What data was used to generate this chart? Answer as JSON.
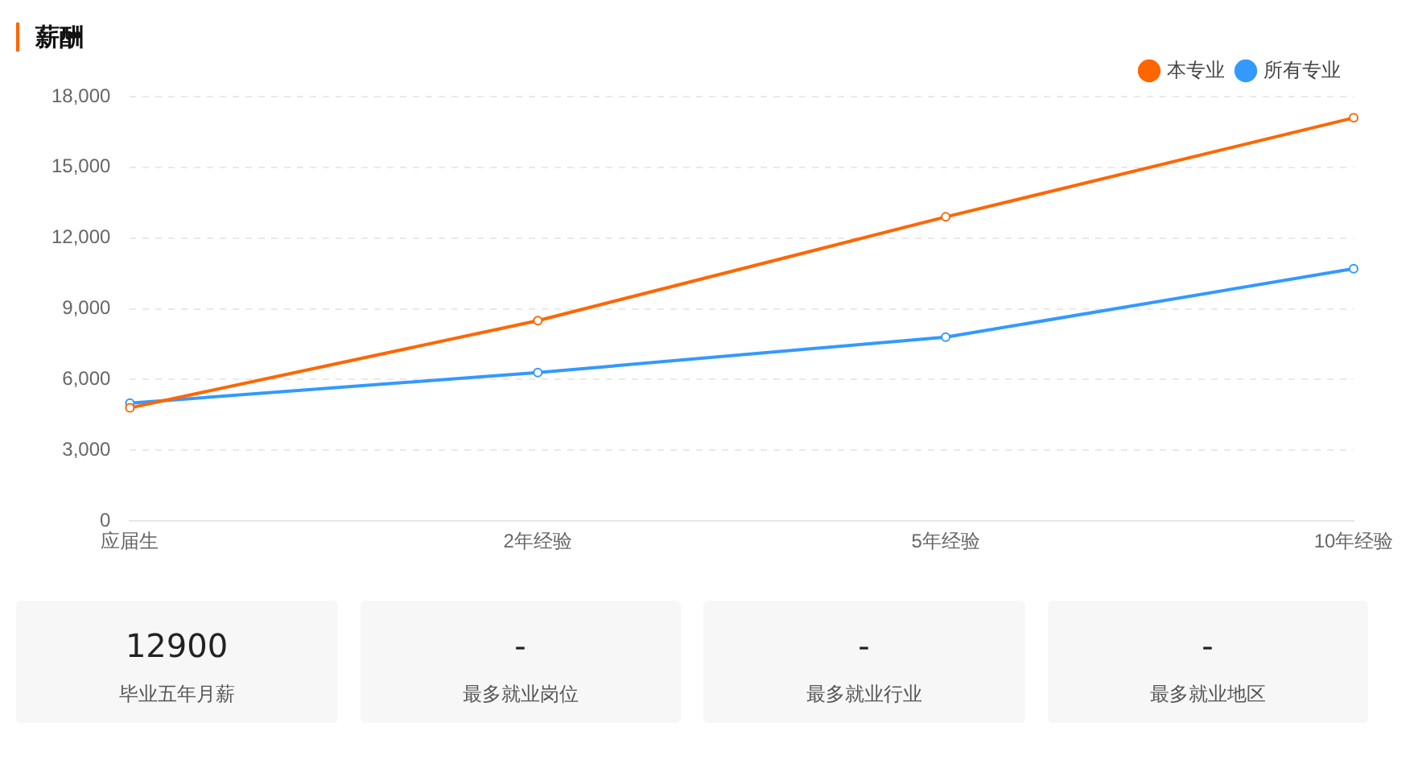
{
  "chart_data": [
    {
      "type": "line",
      "title": "薪酬",
      "categories": [
        "应届生",
        "2年经验",
        "5年经验",
        "10年经验"
      ],
      "series": [
        {
          "name": "本专业",
          "color": "#ff6600",
          "values": [
            4800,
            8500,
            12900,
            17100
          ]
        },
        {
          "name": "所有专业",
          "color": "#3399ff",
          "values": [
            5000,
            6300,
            7800,
            10700
          ]
        }
      ],
      "ylim": [
        0,
        18000
      ],
      "yticks": [
        {
          "value": 0,
          "label": "0"
        },
        {
          "value": 3000,
          "label": "3,000"
        },
        {
          "value": 6000,
          "label": "6,000"
        },
        {
          "value": 9000,
          "label": "9,000"
        },
        {
          "value": 12000,
          "label": "12,000"
        },
        {
          "value": 15000,
          "label": "15,000"
        },
        {
          "value": 18000,
          "label": "18,000"
        }
      ],
      "grid": "y",
      "legend": "top right",
      "marker": "circle",
      "line_style": "solid"
    },
    {
      "type": "other",
      "annotations": [
        "12900",
        "毕业五年月薪",
        "-",
        "最多就业岗位",
        "-",
        "最多就业行业",
        "-",
        "最多就业地区"
      ]
    }
  ]
}
